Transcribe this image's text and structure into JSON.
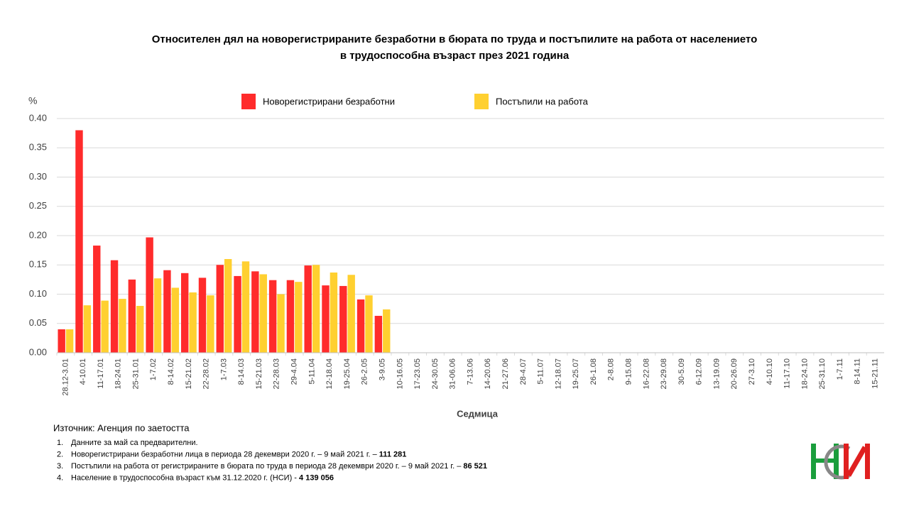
{
  "chart_data": {
    "type": "bar",
    "title": [
      "Относителен дял на новорегистрираните безработни в бюрата по труда и постъпилите на работа от населението",
      "в трудоспособна възраст през 2021 година"
    ],
    "y_unit": "%",
    "x_label": "Седмица",
    "categories": [
      "28.12-3.01",
      "4-10.01",
      "11-17.01",
      "18-24.01",
      "25-31.01",
      "1-7.02",
      "8-14.02",
      "15-21.02",
      "22-28.02",
      "1-7.03",
      "8-14.03",
      "15-21.03",
      "22-28.03",
      "29-4.04",
      "5-11.04",
      "12-18.04",
      "19-25.04",
      "26-2.05",
      "3-9.05",
      "10-16.05",
      "17-23.05",
      "24-30.05",
      "31-06.06",
      "7-13.06",
      "14-20.06",
      "21-27.06",
      "28-4.07",
      "5-11.07",
      "12-18.07",
      "19-25.07",
      "26-1.08",
      "2-8.08",
      "9-15.08",
      "16-22.08",
      "23-29.08",
      "30-5.09",
      "6-12.09",
      "13-19.09",
      "20-26.09",
      "27-3.10",
      "4-10.10",
      "11-17.10",
      "18-24.10",
      "25-31.10",
      "1-7.11",
      "8-14.11",
      "15-21.11"
    ],
    "series": [
      {
        "name": "Новорегистрирани безработни",
        "color": "#ff2b2b",
        "values": [
          0.04,
          0.38,
          0.183,
          0.158,
          0.125,
          0.197,
          0.141,
          0.136,
          0.128,
          0.15,
          0.131,
          0.139,
          0.124,
          0.124,
          0.149,
          0.115,
          0.114,
          0.091,
          0.063,
          null,
          null,
          null,
          null,
          null,
          null,
          null,
          null,
          null,
          null,
          null,
          null,
          null,
          null,
          null,
          null,
          null,
          null,
          null,
          null,
          null,
          null,
          null,
          null,
          null,
          null,
          null,
          null
        ]
      },
      {
        "name": "Постъпили на работа",
        "color": "#ffd030",
        "values": [
          0.04,
          0.081,
          0.089,
          0.092,
          0.08,
          0.127,
          0.111,
          0.103,
          0.098,
          0.16,
          0.156,
          0.134,
          0.1,
          0.121,
          0.15,
          0.137,
          0.133,
          0.098,
          0.074,
          null,
          null,
          null,
          null,
          null,
          null,
          null,
          null,
          null,
          null,
          null,
          null,
          null,
          null,
          null,
          null,
          null,
          null,
          null,
          null,
          null,
          null,
          null,
          null,
          null,
          null,
          null,
          null
        ]
      }
    ],
    "ylim": [
      0,
      0.4
    ],
    "yticks": [
      {
        "value": 0,
        "label": "0.00"
      },
      {
        "value": 0.05,
        "label": "0.05"
      },
      {
        "value": 0.1,
        "label": "0.10"
      },
      {
        "value": 0.15,
        "label": "0.15"
      },
      {
        "value": 0.2,
        "label": "0.20"
      },
      {
        "value": 0.25,
        "label": "0.25"
      },
      {
        "value": 0.3,
        "label": "0.30"
      },
      {
        "value": 0.35,
        "label": "0.35"
      },
      {
        "value": 0.4,
        "label": "0.40"
      }
    ],
    "grid": true,
    "legend": "top",
    "source": "Източник: Агенция по заетостта",
    "notes": [
      {
        "number": "1.",
        "text": "Данните за май са предварителни."
      },
      {
        "number": "2.",
        "text": "Новорегистрирани безработни лица в периода 28 декември  2020 г. – 9 май 2021 г. – ",
        "bold": "111 281"
      },
      {
        "number": "3.",
        "text": "Постъпили на работа от регистрираните в бюрата по труда в периода 28 декември  2020 г. – 9 май 2021 г. – ",
        "bold": "86 521"
      },
      {
        "number": "4.",
        "text": "Население в трудоспособна възраст към 31.12.2020 г. (НСИ)  - ",
        "bold": "4 139 056"
      }
    ]
  }
}
